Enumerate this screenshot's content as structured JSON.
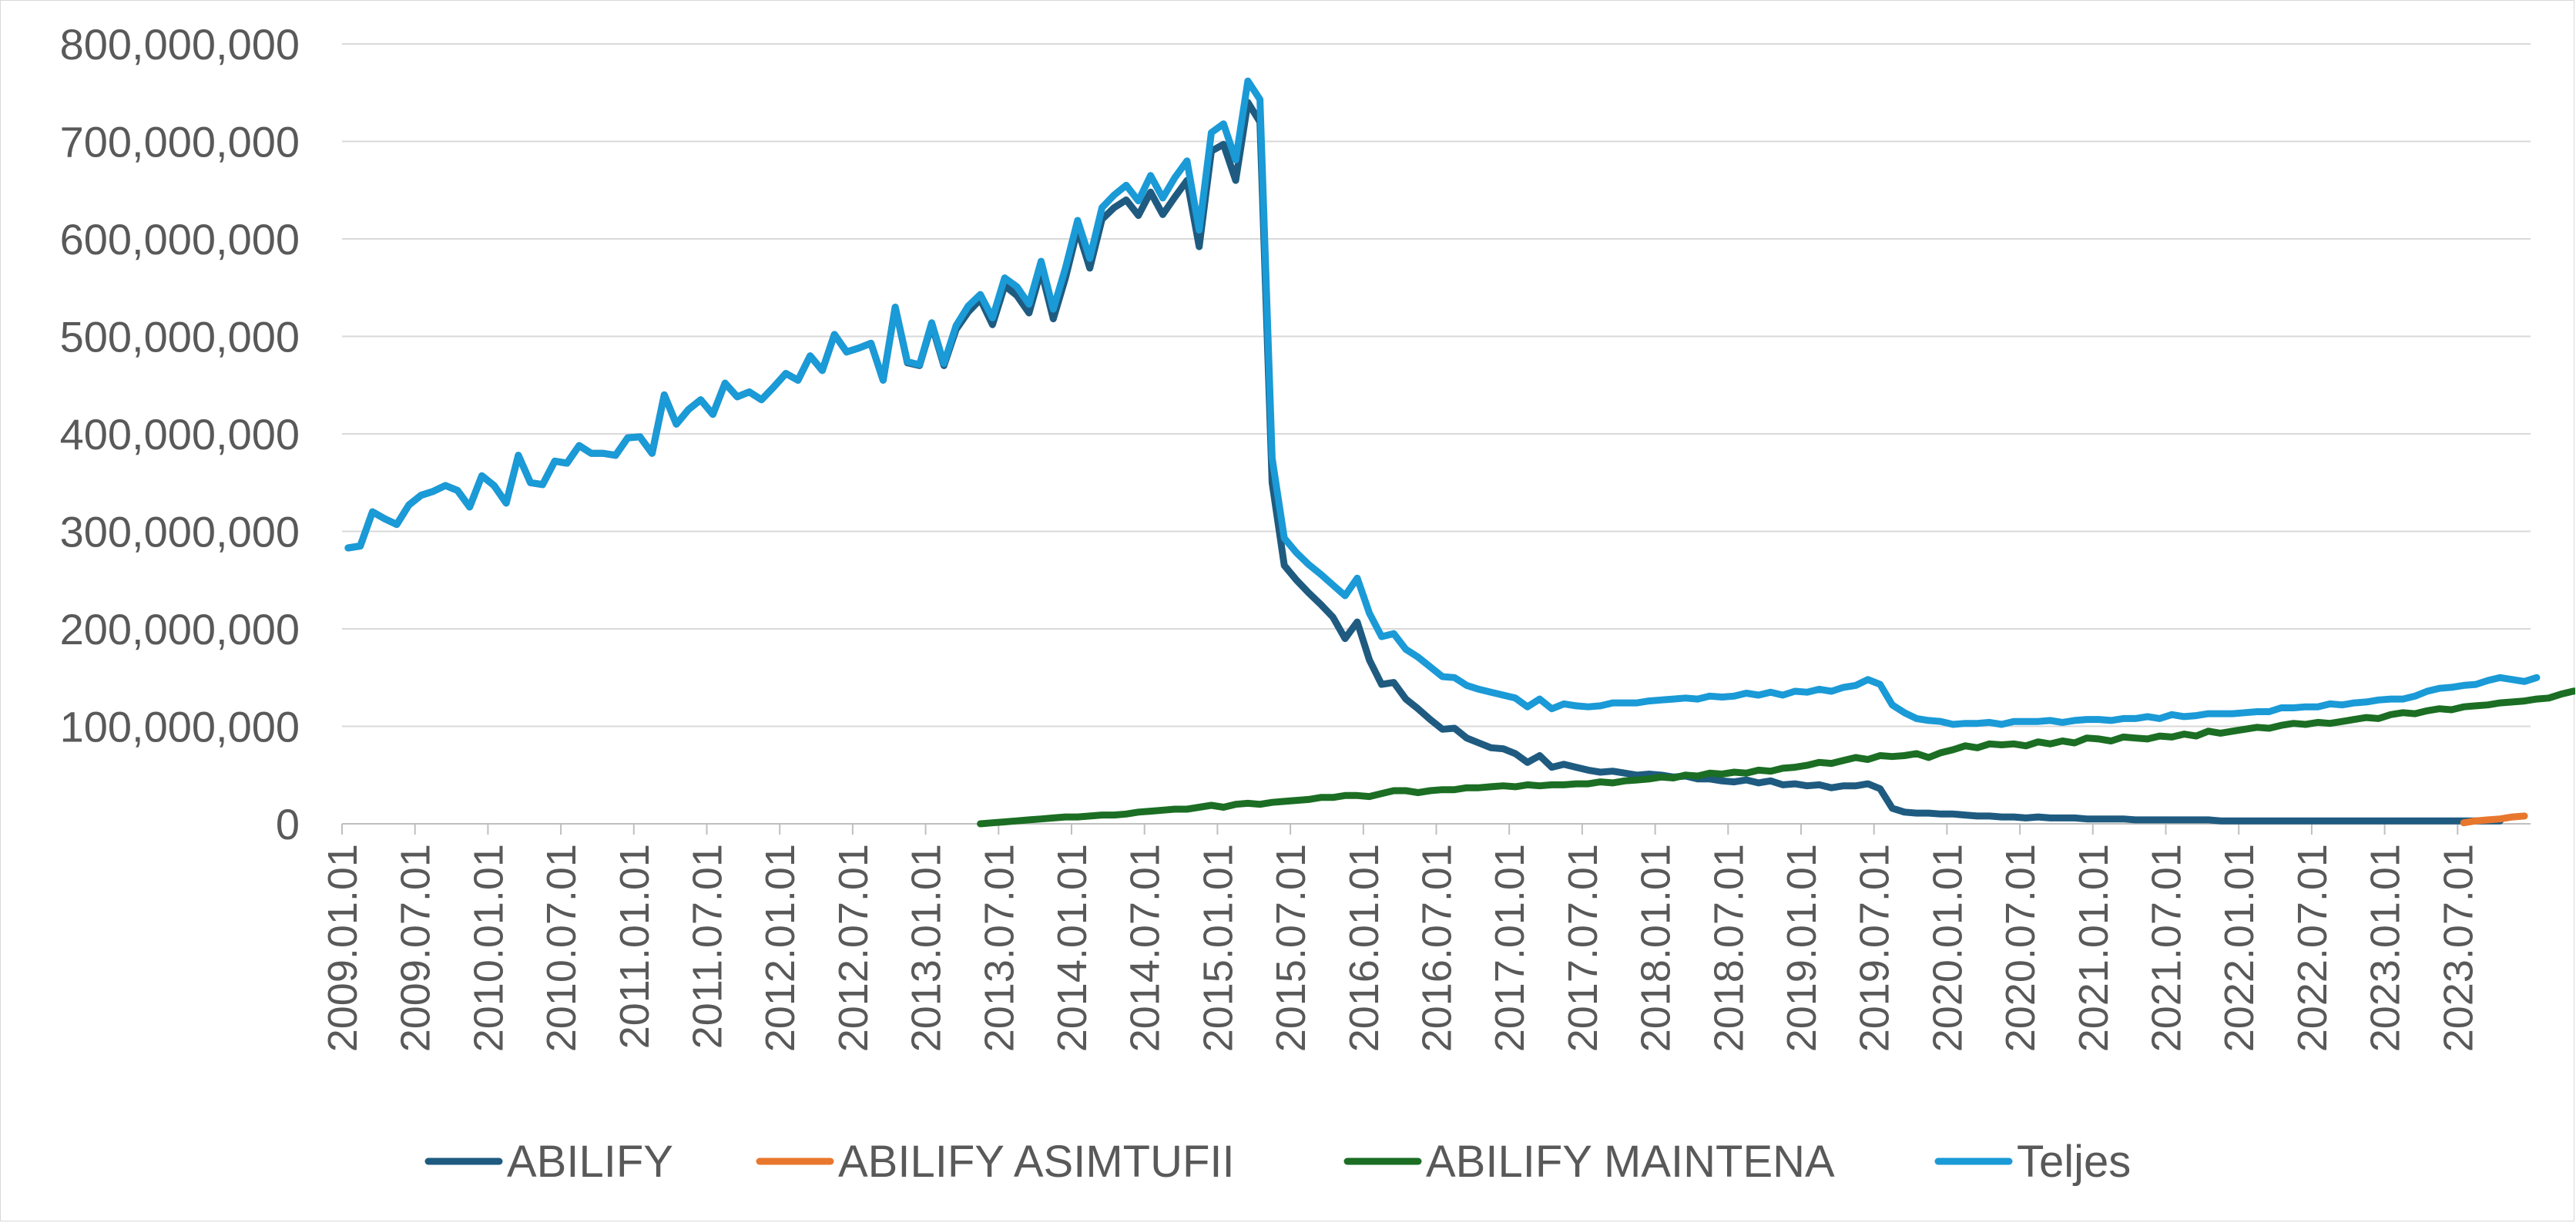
{
  "chart_data": {
    "type": "line",
    "title": "",
    "xlabel": "",
    "ylabel": "",
    "ylim": [
      0,
      800000000
    ],
    "yticks": [
      0,
      100000000,
      200000000,
      300000000,
      400000000,
      500000000,
      600000000,
      700000000,
      800000000
    ],
    "ytick_labels": [
      "0",
      "100,000,000",
      "200,000,000",
      "300,000,000",
      "400,000,000",
      "500,000,000",
      "600,000,000",
      "700,000,000",
      "800,000,000"
    ],
    "x_start": "2009.01",
    "x_end": "2023.12",
    "xtick_labels": [
      "2009.01.01",
      "2009.07.01",
      "2010.01.01",
      "2010.07.01",
      "2011.01.01",
      "2011.07.01",
      "2012.01.01",
      "2012.07.01",
      "2013.01.01",
      "2013.07.01",
      "2014.01.01",
      "2014.07.01",
      "2015.01.01",
      "2015.07.01",
      "2016.01.01",
      "2016.07.01",
      "2017.01.01",
      "2017.07.01",
      "2018.01.01",
      "2018.07.01",
      "2019.01.01",
      "2019.07.01",
      "2020.01.01",
      "2020.07.01",
      "2021.01.01",
      "2021.07.01",
      "2022.01.01",
      "2022.07.01",
      "2023.01.01",
      "2023.07.01"
    ],
    "grid": true,
    "legend_position": "bottom",
    "series": [
      {
        "name": "ABILIFY",
        "color": "#1f5b80",
        "start": "2009.01",
        "values": [
          283,
          285,
          320,
          313,
          307,
          327,
          337,
          341,
          347,
          342,
          325,
          357,
          347,
          329,
          378,
          350,
          348,
          372,
          370,
          388,
          380,
          380,
          378,
          396,
          397,
          380,
          440,
          410,
          425,
          435,
          420,
          452,
          438,
          443,
          435,
          448,
          462,
          455,
          480,
          465,
          502,
          484,
          488,
          493,
          455,
          530,
          473,
          470,
          512,
          470,
          507,
          525,
          538,
          512,
          552,
          542,
          524,
          568,
          518,
          560,
          610,
          570,
          620,
          632,
          640,
          624,
          648,
          625,
          643,
          660,
          592,
          690,
          697,
          660,
          740,
          720,
          350,
          265,
          250,
          237,
          225,
          212,
          190,
          207,
          168,
          143,
          145,
          128,
          118,
          107,
          97,
          98,
          88,
          83,
          78,
          77,
          72,
          63,
          70,
          58,
          61,
          58,
          55,
          53,
          54,
          52,
          50,
          51,
          50,
          48,
          49,
          46,
          46,
          44,
          43,
          45,
          42,
          44,
          40,
          41,
          39,
          40,
          37,
          39,
          39,
          41,
          36,
          16,
          12,
          11,
          11,
          10,
          10,
          9,
          8,
          8,
          7,
          7,
          6,
          7,
          6,
          6,
          6,
          5,
          5,
          5,
          5,
          4,
          4,
          4,
          4,
          4,
          4,
          4,
          3,
          3,
          3,
          3,
          3,
          3,
          3,
          3,
          3,
          3,
          3,
          3,
          3,
          3,
          3,
          3,
          3,
          3,
          3,
          3,
          3,
          3,
          3,
          3
        ]
      },
      {
        "name": "ABILIFY ASIMTUFII",
        "color": "#e8772e",
        "start": "2023.07",
        "values": [
          1,
          3,
          4,
          5,
          7,
          8
        ]
      },
      {
        "name": "ABILIFY MAINTENA",
        "color": "#1b6e23",
        "start": "2013.05",
        "values": [
          0,
          1,
          2,
          3,
          4,
          5,
          6,
          7,
          7,
          8,
          9,
          9,
          10,
          12,
          13,
          14,
          15,
          15,
          17,
          19,
          17,
          20,
          21,
          20,
          22,
          23,
          24,
          25,
          27,
          27,
          29,
          29,
          28,
          31,
          34,
          34,
          32,
          34,
          35,
          35,
          37,
          37,
          38,
          39,
          38,
          40,
          39,
          40,
          40,
          41,
          41,
          43,
          42,
          44,
          45,
          46,
          48,
          47,
          50,
          49,
          52,
          51,
          53,
          52,
          55,
          54,
          57,
          58,
          60,
          63,
          62,
          65,
          68,
          66,
          70,
          69,
          70,
          72,
          68,
          73,
          76,
          80,
          78,
          82,
          81,
          82,
          80,
          84,
          82,
          85,
          83,
          88,
          87,
          85,
          89,
          88,
          87,
          90,
          89,
          92,
          90,
          95,
          93,
          95,
          97,
          99,
          98,
          101,
          103,
          102,
          104,
          103,
          105,
          107,
          109,
          108,
          112,
          114,
          113,
          116,
          118,
          117,
          120,
          121,
          122,
          124,
          125,
          126,
          128,
          129,
          133,
          136,
          137,
          139,
          138,
          134,
          138
        ]
      },
      {
        "name": "Teljes",
        "color": "#1a9ad6",
        "start": "2009.01",
        "values": [
          283,
          285,
          320,
          313,
          307,
          327,
          337,
          341,
          347,
          342,
          325,
          357,
          347,
          329,
          378,
          350,
          348,
          372,
          370,
          388,
          380,
          380,
          378,
          396,
          397,
          380,
          440,
          410,
          425,
          435,
          420,
          452,
          438,
          443,
          435,
          448,
          462,
          455,
          480,
          465,
          502,
          484,
          488,
          493,
          455,
          530,
          474,
          471,
          514,
          472,
          511,
          531,
          543,
          519,
          560,
          551,
          533,
          577,
          528,
          570,
          619,
          580,
          632,
          645,
          655,
          639,
          665,
          642,
          663,
          680,
          609,
          709,
          718,
          681,
          762,
          743,
          375,
          293,
          278,
          266,
          256,
          245,
          234,
          252,
          216,
          192,
          195,
          179,
          171,
          161,
          151,
          150,
          142,
          138,
          135,
          132,
          129,
          120,
          128,
          118,
          123,
          121,
          120,
          121,
          124,
          124,
          124,
          126,
          127,
          128,
          129,
          128,
          131,
          130,
          131,
          134,
          132,
          135,
          132,
          136,
          135,
          138,
          136,
          140,
          142,
          148,
          143,
          122,
          114,
          108,
          106,
          105,
          102,
          103,
          103,
          104,
          102,
          105,
          105,
          105,
          106,
          104,
          106,
          107,
          107,
          106,
          108,
          108,
          110,
          108,
          112,
          110,
          111,
          113,
          113,
          113,
          114,
          115,
          115,
          119,
          119,
          120,
          120,
          123,
          122,
          124,
          125,
          127,
          128,
          128,
          131,
          136,
          139,
          140,
          142,
          143,
          147,
          150,
          148,
          146,
          150
        ]
      }
    ],
    "value_unit_multiplier": 1000000
  }
}
